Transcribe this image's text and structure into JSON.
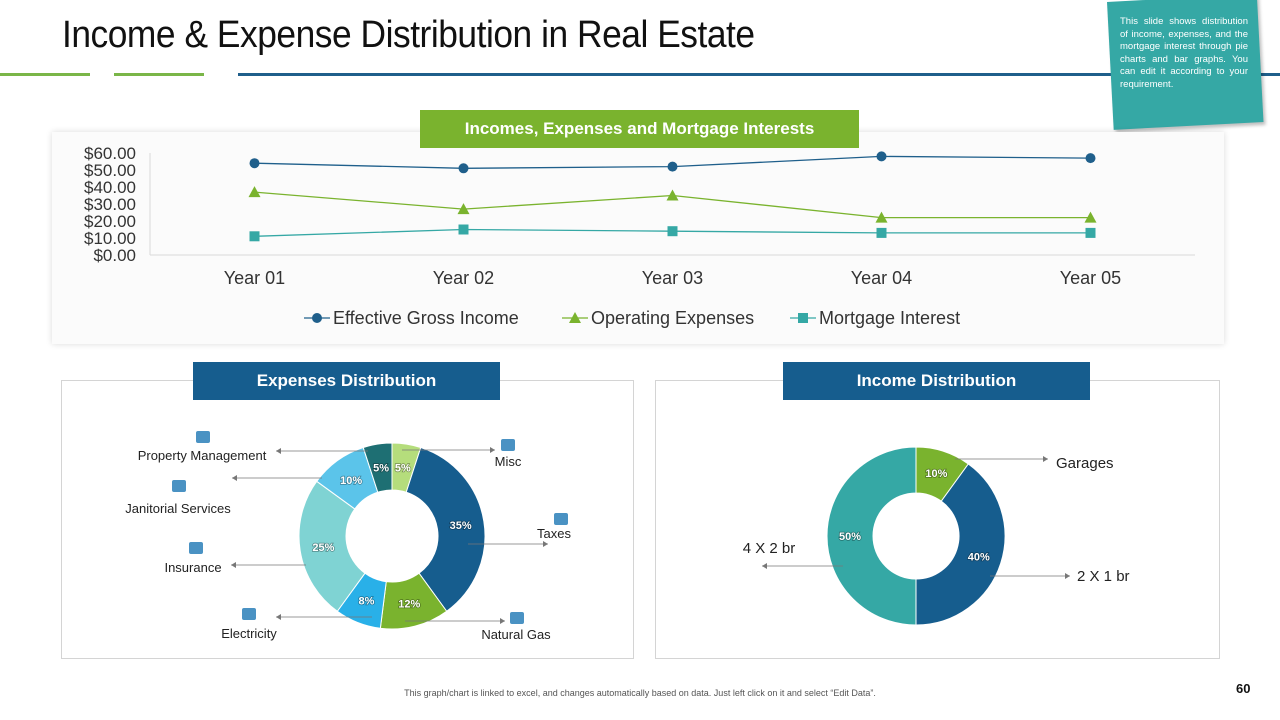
{
  "slide": {
    "title": "Income & Expense Distribution in Real Estate",
    "note": "This slide shows distribution of income, expenses, and the mortgage interest through pie charts and bar graphs. You can edit it according to your requirement.",
    "footer": "This graph/chart is linked to excel, and changes automatically based on data. Just left click on it and select “Edit Data”.",
    "page_number": "60",
    "colors": {
      "green": "#7ab32e",
      "dark_blue": "#165d8e",
      "teal": "#35a8a5",
      "accent_line": "#1f5f8b"
    }
  },
  "chart_data": [
    {
      "type": "line",
      "title": "Incomes, Expenses and Mortgage Interests",
      "categories": [
        "Year 01",
        "Year 02",
        "Year 03",
        "Year 04",
        "Year 05"
      ],
      "y_ticks": [
        "$0.00",
        "$10.00",
        "$20.00",
        "$30.00",
        "$40.00",
        "$50.00",
        "$60.00"
      ],
      "ylim": [
        0,
        60
      ],
      "legend_position": "bottom",
      "series": [
        {
          "name": "Effective Gross Income",
          "values": [
            54,
            51,
            52,
            58,
            57
          ],
          "color": "#1f5f8b",
          "marker": "circle"
        },
        {
          "name": "Operating Expenses",
          "values": [
            37,
            27,
            35,
            22,
            22
          ],
          "color": "#7ab32e",
          "marker": "triangle"
        },
        {
          "name": "Mortgage Interest",
          "values": [
            11,
            15,
            14,
            13,
            13
          ],
          "color": "#35a8a5",
          "marker": "square"
        }
      ]
    },
    {
      "type": "pie",
      "title": "Expenses Distribution",
      "slices": [
        {
          "label": "Misc",
          "value": 5,
          "text": "5%",
          "color": "#b5dd7c",
          "icon": "signal-bars-icon"
        },
        {
          "label": "Taxes",
          "value": 35,
          "text": "35%",
          "color": "#165d8e",
          "icon": "tax-bag-icon"
        },
        {
          "label": "Natural Gas",
          "value": 12,
          "text": "12%",
          "color": "#7ab32e",
          "icon": "fuel-pump-icon"
        },
        {
          "label": "Electricity",
          "value": 8,
          "text": "8%",
          "color": "#29b0e8",
          "icon": "house-icon"
        },
        {
          "label": "Insurance",
          "value": 25,
          "text": "25%",
          "color": "#7fd3d3",
          "icon": "insurance-icon"
        },
        {
          "label": "Janitorial Services",
          "value": 10,
          "text": "10%",
          "color": "#5bc4ea",
          "icon": "cleaning-icon"
        },
        {
          "label": "Property Management",
          "value": 5,
          "text": "5%",
          "color": "#1e6f73",
          "icon": "building-icon"
        }
      ]
    },
    {
      "type": "pie",
      "title": "Income Distribution",
      "slices": [
        {
          "label": "Garages",
          "value": 10,
          "text": "10%",
          "color": "#7ab32e"
        },
        {
          "label": "2 X 1 br",
          "value": 40,
          "text": "40%",
          "color": "#165d8e"
        },
        {
          "label": "4 X 2 br",
          "value": 50,
          "text": "50%",
          "color": "#35a8a5"
        }
      ]
    }
  ]
}
